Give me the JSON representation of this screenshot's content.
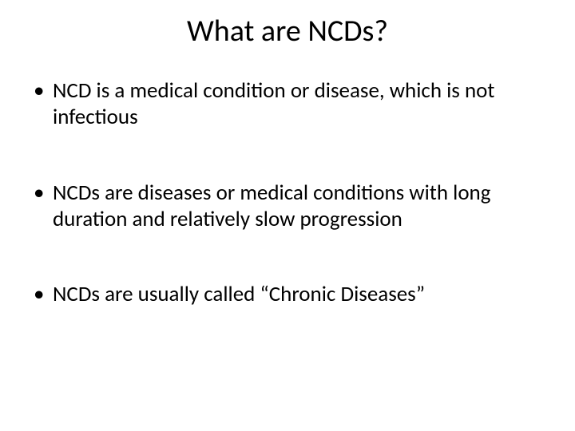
{
  "slide": {
    "title": "What are NCDs?",
    "bullets": [
      "NCD is a medical condition or disease, which is not infectious",
      "NCDs are diseases or medical conditions with long duration and relatively slow progression",
      "NCDs are usually called “Chronic Diseases”"
    ],
    "background_color": "#ffffff",
    "text_color": "#000000",
    "title_fontsize": 38,
    "bullet_fontsize": 27,
    "font_family": "Calibri"
  }
}
